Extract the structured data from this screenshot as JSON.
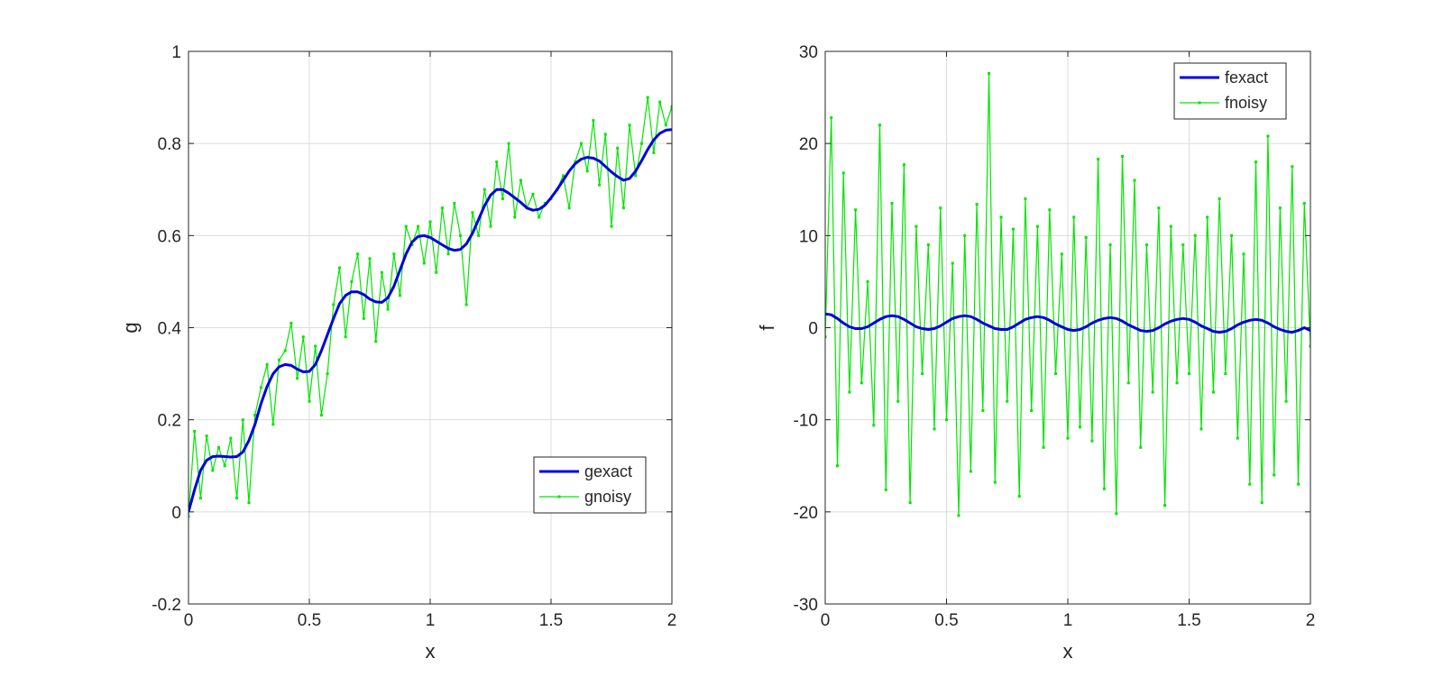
{
  "chart_data": [
    {
      "type": "line",
      "xlabel": "x",
      "ylabel": "g",
      "xlim": [
        0,
        2
      ],
      "ylim": [
        -0.2,
        1
      ],
      "xticks": [
        0,
        0.5,
        1,
        1.5,
        2
      ],
      "xtick_labels": [
        "0",
        "0.5",
        "1",
        "1.5",
        "2"
      ],
      "yticks": [
        -0.2,
        0,
        0.2,
        0.4,
        0.6,
        0.8,
        1
      ],
      "ytick_labels": [
        "-0.2",
        "0",
        "0.2",
        "0.4",
        "0.6",
        "0.8",
        "1"
      ],
      "grid": true,
      "legend_position": "bottom-right",
      "series": [
        {
          "name": "gexact",
          "color": "#0000dd",
          "style": "solid",
          "x": [
            0,
            0.025,
            0.05,
            0.075,
            0.1,
            0.125,
            0.15,
            0.175,
            0.2,
            0.225,
            0.25,
            0.275,
            0.3,
            0.325,
            0.35,
            0.375,
            0.4,
            0.425,
            0.45,
            0.475,
            0.5,
            0.525,
            0.55,
            0.575,
            0.6,
            0.625,
            0.65,
            0.675,
            0.7,
            0.725,
            0.75,
            0.775,
            0.8,
            0.825,
            0.85,
            0.875,
            0.9,
            0.925,
            0.95,
            0.975,
            1,
            1.025,
            1.05,
            1.075,
            1.1,
            1.125,
            1.15,
            1.175,
            1.2,
            1.225,
            1.25,
            1.275,
            1.3,
            1.325,
            1.35,
            1.375,
            1.4,
            1.425,
            1.45,
            1.475,
            1.5,
            1.525,
            1.55,
            1.575,
            1.6,
            1.625,
            1.65,
            1.675,
            1.7,
            1.725,
            1.75,
            1.775,
            1.8,
            1.825,
            1.85,
            1.875,
            1.9,
            1.925,
            1.95,
            1.975,
            2
          ],
          "y": [
            0,
            0.048,
            0.09,
            0.112,
            0.12,
            0.121,
            0.12,
            0.119,
            0.12,
            0.13,
            0.155,
            0.19,
            0.235,
            0.272,
            0.3,
            0.315,
            0.32,
            0.318,
            0.31,
            0.304,
            0.305,
            0.32,
            0.35,
            0.385,
            0.42,
            0.452,
            0.47,
            0.478,
            0.478,
            0.472,
            0.462,
            0.456,
            0.455,
            0.465,
            0.49,
            0.525,
            0.56,
            0.586,
            0.598,
            0.6,
            0.596,
            0.588,
            0.58,
            0.572,
            0.568,
            0.57,
            0.582,
            0.605,
            0.635,
            0.665,
            0.688,
            0.7,
            0.7,
            0.692,
            0.682,
            0.672,
            0.66,
            0.655,
            0.657,
            0.666,
            0.682,
            0.7,
            0.72,
            0.74,
            0.756,
            0.766,
            0.77,
            0.768,
            0.762,
            0.75,
            0.738,
            0.728,
            0.72,
            0.724,
            0.74,
            0.763,
            0.787,
            0.808,
            0.822,
            0.829,
            0.83
          ]
        },
        {
          "name": "gnoisy",
          "color": "#00e600",
          "style": "solid-marker",
          "x": [
            0,
            0.025,
            0.05,
            0.075,
            0.1,
            0.125,
            0.15,
            0.175,
            0.2,
            0.225,
            0.25,
            0.275,
            0.3,
            0.325,
            0.35,
            0.375,
            0.4,
            0.425,
            0.45,
            0.475,
            0.5,
            0.525,
            0.55,
            0.575,
            0.6,
            0.625,
            0.65,
            0.675,
            0.7,
            0.725,
            0.75,
            0.775,
            0.8,
            0.825,
            0.85,
            0.875,
            0.9,
            0.925,
            0.95,
            0.975,
            1,
            1.025,
            1.05,
            1.075,
            1.1,
            1.125,
            1.15,
            1.175,
            1.2,
            1.225,
            1.25,
            1.275,
            1.3,
            1.325,
            1.35,
            1.375,
            1.4,
            1.425,
            1.45,
            1.475,
            1.5,
            1.525,
            1.55,
            1.575,
            1.6,
            1.625,
            1.65,
            1.675,
            1.7,
            1.725,
            1.75,
            1.775,
            1.8,
            1.825,
            1.85,
            1.875,
            1.9,
            1.925,
            1.95,
            1.975,
            2
          ],
          "y": [
            -0.01,
            0.175,
            0.03,
            0.165,
            0.09,
            0.14,
            0.1,
            0.16,
            0.03,
            0.2,
            0.02,
            0.21,
            0.27,
            0.32,
            0.19,
            0.33,
            0.35,
            0.41,
            0.29,
            0.38,
            0.24,
            0.36,
            0.21,
            0.3,
            0.45,
            0.53,
            0.38,
            0.5,
            0.56,
            0.42,
            0.55,
            0.37,
            0.52,
            0.44,
            0.56,
            0.47,
            0.62,
            0.58,
            0.62,
            0.54,
            0.63,
            0.52,
            0.66,
            0.56,
            0.67,
            0.6,
            0.45,
            0.65,
            0.6,
            0.7,
            0.62,
            0.76,
            0.68,
            0.8,
            0.64,
            0.72,
            0.66,
            0.69,
            0.64,
            0.67,
            0.68,
            0.7,
            0.73,
            0.66,
            0.76,
            0.8,
            0.74,
            0.85,
            0.71,
            0.82,
            0.62,
            0.79,
            0.66,
            0.84,
            0.73,
            0.8,
            0.9,
            0.78,
            0.89,
            0.84,
            0.88
          ]
        }
      ]
    },
    {
      "type": "line",
      "xlabel": "x",
      "ylabel": "f",
      "xlim": [
        0,
        2
      ],
      "ylim": [
        -30,
        30
      ],
      "xticks": [
        0,
        0.5,
        1,
        1.5,
        2
      ],
      "xtick_labels": [
        "0",
        "0.5",
        "1",
        "1.5",
        "2"
      ],
      "yticks": [
        -30,
        -20,
        -10,
        0,
        10,
        20,
        30
      ],
      "ytick_labels": [
        "-30",
        "-20",
        "-10",
        "0",
        "10",
        "20",
        "30"
      ],
      "grid": true,
      "legend_position": "top-right",
      "series": [
        {
          "name": "fexact",
          "color": "#0000dd",
          "style": "solid",
          "x": [
            0,
            0.025,
            0.05,
            0.075,
            0.1,
            0.125,
            0.15,
            0.175,
            0.2,
            0.225,
            0.25,
            0.275,
            0.3,
            0.325,
            0.35,
            0.375,
            0.4,
            0.425,
            0.45,
            0.475,
            0.5,
            0.525,
            0.55,
            0.575,
            0.6,
            0.625,
            0.65,
            0.675,
            0.7,
            0.725,
            0.75,
            0.775,
            0.8,
            0.825,
            0.85,
            0.875,
            0.9,
            0.925,
            0.95,
            0.975,
            1,
            1.025,
            1.05,
            1.075,
            1.1,
            1.125,
            1.15,
            1.175,
            1.2,
            1.225,
            1.25,
            1.275,
            1.3,
            1.325,
            1.35,
            1.375,
            1.4,
            1.425,
            1.45,
            1.475,
            1.5,
            1.525,
            1.55,
            1.575,
            1.6,
            1.625,
            1.65,
            1.675,
            1.7,
            1.725,
            1.75,
            1.775,
            1.8,
            1.825,
            1.85,
            1.875,
            1.9,
            1.925,
            1.95,
            1.975,
            2
          ],
          "y": [
            1.5,
            1.4,
            1.0,
            0.5,
            0.1,
            -0.1,
            -0.1,
            0.1,
            0.5,
            0.9,
            1.2,
            1.3,
            1.2,
            0.9,
            0.5,
            0.1,
            -0.1,
            -0.2,
            -0.1,
            0.2,
            0.6,
            1.0,
            1.2,
            1.3,
            1.2,
            0.9,
            0.5,
            0.2,
            -0.1,
            -0.2,
            -0.2,
            0.1,
            0.5,
            0.9,
            1.1,
            1.2,
            1.1,
            0.8,
            0.4,
            0.1,
            -0.2,
            -0.3,
            -0.2,
            0.1,
            0.5,
            0.8,
            1.0,
            1.1,
            1.0,
            0.7,
            0.3,
            0.0,
            -0.3,
            -0.4,
            -0.3,
            0.0,
            0.4,
            0.7,
            0.9,
            1.0,
            0.9,
            0.6,
            0.2,
            -0.1,
            -0.4,
            -0.5,
            -0.4,
            -0.1,
            0.3,
            0.6,
            0.8,
            0.9,
            0.8,
            0.5,
            0.1,
            -0.2,
            -0.4,
            -0.5,
            -0.3,
            0.0,
            -0.3
          ]
        },
        {
          "name": "fnoisy",
          "color": "#00e600",
          "style": "solid-marker",
          "x": [
            0,
            0.025,
            0.05,
            0.075,
            0.1,
            0.125,
            0.15,
            0.175,
            0.2,
            0.225,
            0.25,
            0.275,
            0.3,
            0.325,
            0.35,
            0.375,
            0.4,
            0.425,
            0.45,
            0.475,
            0.5,
            0.525,
            0.55,
            0.575,
            0.6,
            0.625,
            0.65,
            0.675,
            0.7,
            0.725,
            0.75,
            0.775,
            0.8,
            0.825,
            0.85,
            0.875,
            0.9,
            0.925,
            0.95,
            0.975,
            1,
            1.025,
            1.05,
            1.075,
            1.1,
            1.125,
            1.15,
            1.175,
            1.2,
            1.225,
            1.25,
            1.275,
            1.3,
            1.325,
            1.35,
            1.375,
            1.4,
            1.425,
            1.45,
            1.475,
            1.5,
            1.525,
            1.55,
            1.575,
            1.6,
            1.625,
            1.65,
            1.675,
            1.7,
            1.725,
            1.75,
            1.775,
            1.8,
            1.825,
            1.85,
            1.875,
            1.9,
            1.925,
            1.95,
            1.975,
            2
          ],
          "y": [
            -1,
            22.8,
            -15,
            16.8,
            -7,
            12.8,
            -6,
            5,
            -10.6,
            22,
            -17.6,
            13.5,
            -8,
            17.7,
            -19,
            11,
            -5,
            9,
            -11,
            13,
            -10,
            7,
            -20.4,
            10,
            -15.6,
            13.4,
            -9,
            27.6,
            -16.8,
            12,
            -8,
            10.7,
            -18.3,
            14,
            -9,
            11,
            -13,
            12.8,
            -5,
            8,
            -12,
            12,
            -10.8,
            9.8,
            -12.3,
            18.3,
            -17.5,
            9,
            -20.2,
            18.6,
            -6,
            16,
            -13,
            9,
            -7,
            13,
            -19.3,
            11,
            -6,
            9,
            -5,
            10,
            -11,
            12,
            -7,
            14,
            -5,
            10,
            -12,
            8,
            -17,
            18,
            -19,
            20.8,
            -16,
            13,
            -8,
            17.5,
            -17,
            13.5,
            -2
          ]
        }
      ]
    }
  ]
}
